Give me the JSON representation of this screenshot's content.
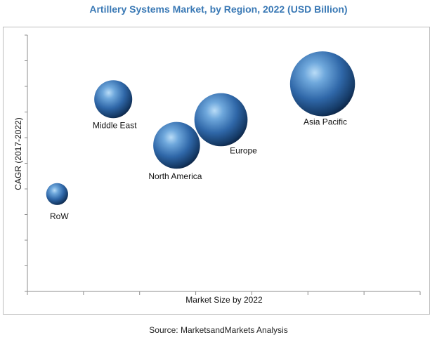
{
  "chart_data": {
    "type": "bubble",
    "title": "Artillery Systems Market, by Region, 2022 (USD Billion)",
    "xlabel": "Market Size by 2022",
    "ylabel": "CAGR (2017-2022)",
    "axis_ticks_labeled": false,
    "grid": false,
    "points": [
      {
        "label": "RoW",
        "x": 0.53,
        "y": 0.38,
        "size": 0.09
      },
      {
        "label": "Middle East",
        "x": 1.53,
        "y": 0.75,
        "size": 0.27
      },
      {
        "label": "North America",
        "x": 2.66,
        "y": 0.57,
        "size": 0.41
      },
      {
        "label": "Europe",
        "x": 3.45,
        "y": 0.67,
        "size": 0.53
      },
      {
        "label": "Asia Pacific",
        "x": 5.26,
        "y": 0.81,
        "size": 0.79
      }
    ],
    "source": "Source: MarketsandMarkets Analysis"
  }
}
